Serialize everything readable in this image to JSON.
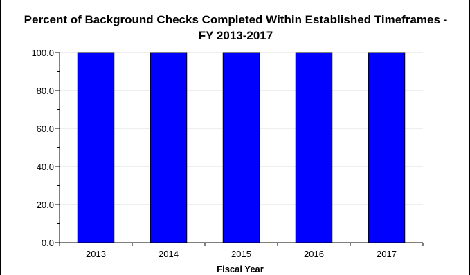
{
  "chart_data": {
    "type": "bar",
    "title": "Percent of Background Checks Completed Within Established Timeframes - FY 2013-2017",
    "title_lines": [
      "Percent of Background Checks Completed Within Established Timeframes -",
      "FY 2013-2017"
    ],
    "xlabel": "Fiscal Year",
    "ylabel": "",
    "categories": [
      "2013",
      "2014",
      "2015",
      "2016",
      "2017"
    ],
    "series": [
      {
        "values": [
          100,
          100,
          100,
          100,
          100
        ],
        "color": "#0000ff"
      }
    ],
    "ylim": [
      0,
      100
    ],
    "yticks": [
      0,
      20,
      40,
      60,
      80,
      100
    ],
    "ytick_labels": [
      "0.0",
      "20.0",
      "40.0",
      "60.0",
      "80.0",
      "100.0"
    ],
    "grid": true,
    "legend": "none",
    "colors": {
      "bar": "#0000ff",
      "bar_outline": "#000000",
      "grid": "#dcdcdc",
      "axis": "#000000"
    }
  }
}
